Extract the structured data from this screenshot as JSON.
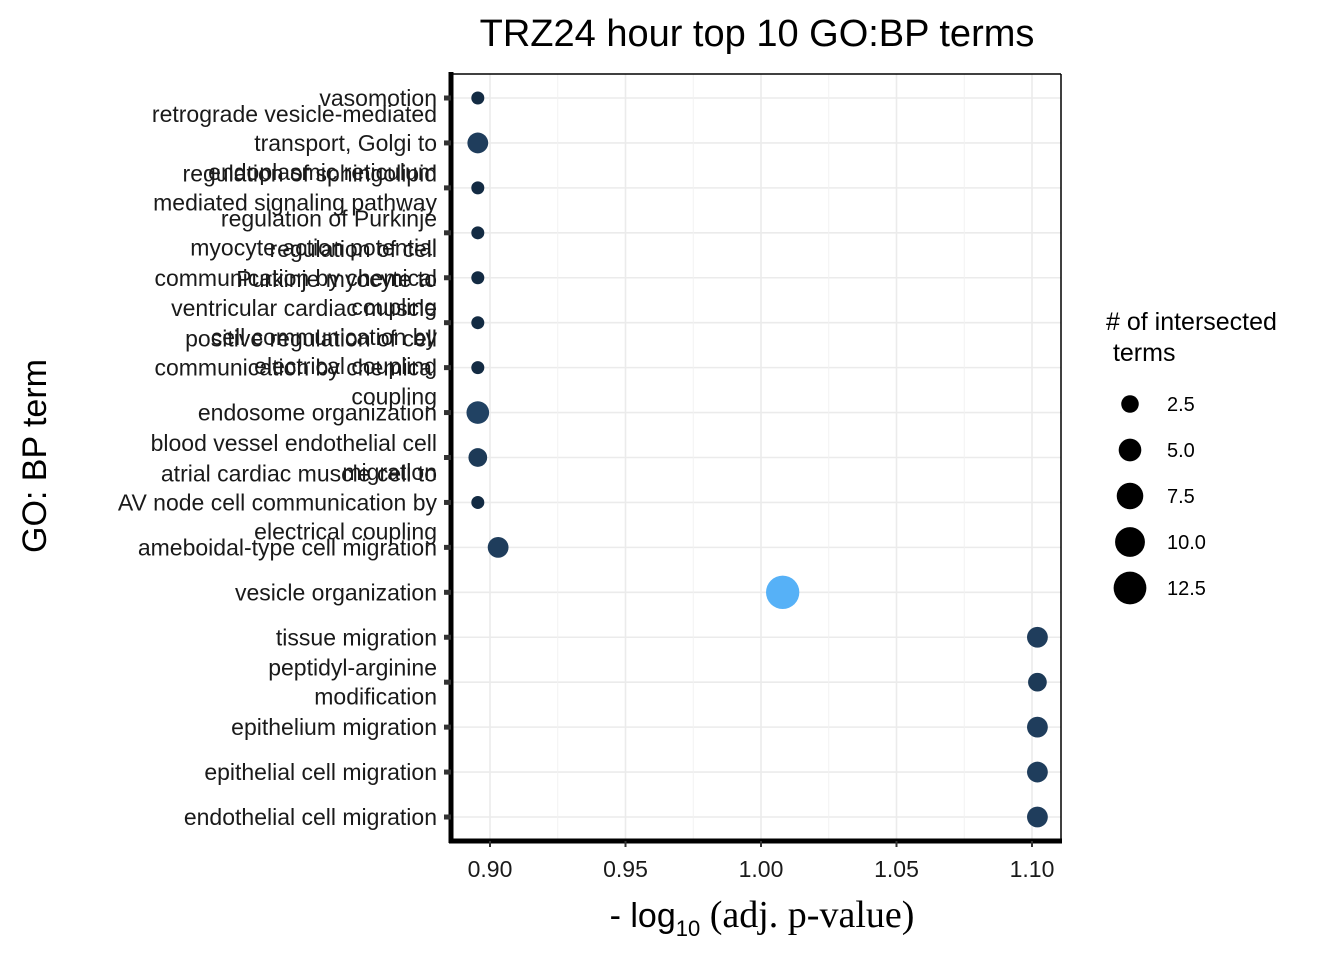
{
  "chart_data": {
    "type": "scatter",
    "title": "TRZ24 hour top 10 GO:BP terms",
    "xlabel": {
      "prefix": "- log",
      "subscript": "10",
      "rest": " (adj. p-value)"
    },
    "ylabel": "GO: BP term",
    "xlim": [
      0.885,
      1.11
    ],
    "x_ticks": [
      "0.90",
      "0.95",
      "1.00",
      "1.05",
      "1.10"
    ],
    "x_tick_values": [
      0.9,
      0.95,
      1.0,
      1.05,
      1.1
    ],
    "grid": true,
    "legend": {
      "position": "right",
      "title_lines": [
        "# of intersected",
        " terms"
      ],
      "sizes": [
        2.5,
        5.0,
        7.5,
        10.0,
        12.5
      ],
      "labels": [
        "2.5",
        "5.0",
        "7.5",
        "10.0",
        "12.5"
      ]
    },
    "points": [
      {
        "term": [
          "vasomotion"
        ],
        "x": 0.8955,
        "size": 1,
        "color": "#132B43"
      },
      {
        "term": [
          "retrograde vesicle-mediated",
          "transport, Golgi to",
          "endoplasmic reticulum"
        ],
        "x": 0.8955,
        "size": 4,
        "color": "#1F3D5C"
      },
      {
        "term": [
          "regulation of sphingolipid",
          "mediated signaling pathway"
        ],
        "x": 0.8955,
        "size": 1,
        "color": "#132B43"
      },
      {
        "term": [
          "regulation of Purkinje",
          "myocyte action potential"
        ],
        "x": 0.8955,
        "size": 1,
        "color": "#132B43"
      },
      {
        "term": [
          "regulation of cell",
          "communication by chemical",
          "coupling"
        ],
        "x": 0.8955,
        "size": 1,
        "color": "#132B43"
      },
      {
        "term": [
          "Purkinje myocyte to",
          "ventricular cardiac muscle",
          "cell communication by",
          "electrical coupling"
        ],
        "x": 0.8955,
        "size": 1,
        "color": "#132B43"
      },
      {
        "term": [
          "positive regulation of cell",
          "communication by chemical",
          "coupling"
        ],
        "x": 0.8955,
        "size": 1,
        "color": "#132B43"
      },
      {
        "term": [
          "endosome organization"
        ],
        "x": 0.8955,
        "size": 5,
        "color": "#214263"
      },
      {
        "term": [
          "blood vessel endothelial cell",
          "migration"
        ],
        "x": 0.8955,
        "size": 3,
        "color": "#1D3A57"
      },
      {
        "term": [
          "atrial cardiac muscle cell to",
          "AV node cell communication by",
          "electrical coupling"
        ],
        "x": 0.8955,
        "size": 1,
        "color": "#132B43"
      },
      {
        "term": [
          "ameboidal-type cell migration"
        ],
        "x": 0.903,
        "size": 4,
        "color": "#1F3D5C"
      },
      {
        "term": [
          "vesicle organization"
        ],
        "x": 1.008,
        "size": 13,
        "color": "#56B1F7"
      },
      {
        "term": [
          "tissue migration"
        ],
        "x": 1.102,
        "size": 4,
        "color": "#1F3D5C"
      },
      {
        "term": [
          "peptidyl-arginine",
          "modification"
        ],
        "x": 1.102,
        "size": 3,
        "color": "#1D3A57"
      },
      {
        "term": [
          "epithelium migration"
        ],
        "x": 1.102,
        "size": 4,
        "color": "#1F3D5C"
      },
      {
        "term": [
          "epithelial cell migration"
        ],
        "x": 1.102,
        "size": 4,
        "color": "#1F3D5C"
      },
      {
        "term": [
          "endothelial cell migration"
        ],
        "x": 1.102,
        "size": 4,
        "color": "#1F3D5C"
      }
    ]
  }
}
